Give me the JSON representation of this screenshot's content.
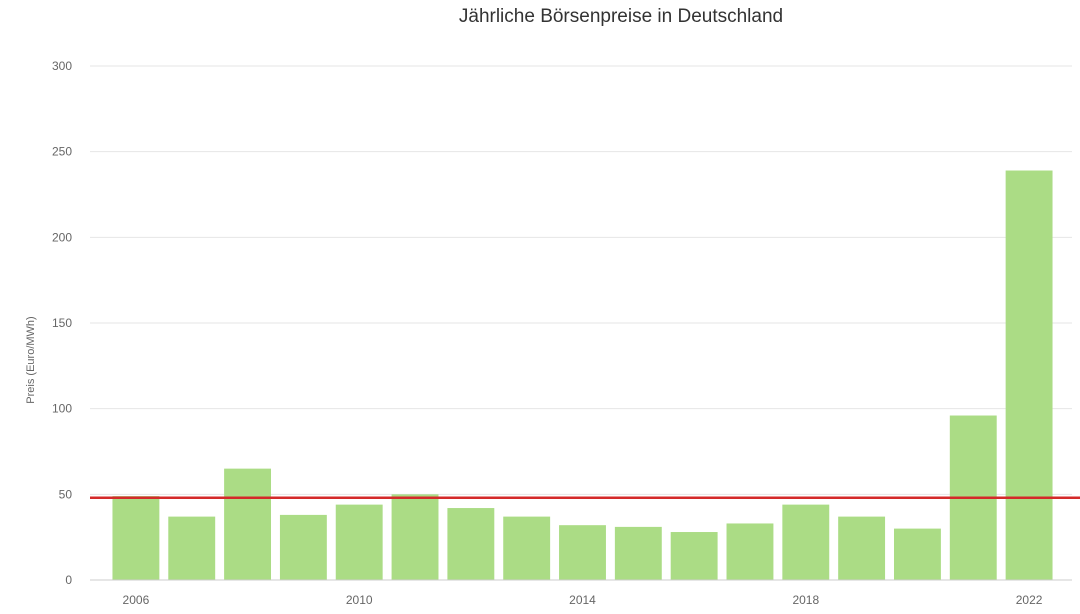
{
  "chart_data": {
    "type": "bar",
    "title": "Jährliche Börsenpreise in Deutschland",
    "xlabel": "",
    "ylabel": "Preis (Euro/MWh)",
    "categories": [
      "2006",
      "2007",
      "2008",
      "2009",
      "2010",
      "2011",
      "2012",
      "2013",
      "2014",
      "2015",
      "2016",
      "2017",
      "2018",
      "2019",
      "2020",
      "2021",
      "2022"
    ],
    "x_tick_labels": [
      "2006",
      "2010",
      "2014",
      "2018",
      "2022"
    ],
    "values": [
      49,
      37,
      65,
      38,
      44,
      50,
      42,
      37,
      32,
      31,
      28,
      33,
      44,
      37,
      30,
      96,
      239
    ],
    "ylim": [
      0,
      300
    ],
    "y_ticks": [
      0,
      50,
      100,
      150,
      200,
      250,
      300
    ],
    "reference_line": {
      "value": 48
    },
    "grid": true,
    "colors": {
      "bar": "#abdc85",
      "reference_line": "#d42a2a",
      "grid": "#e6e6e6",
      "axis": "#cccccc"
    }
  }
}
